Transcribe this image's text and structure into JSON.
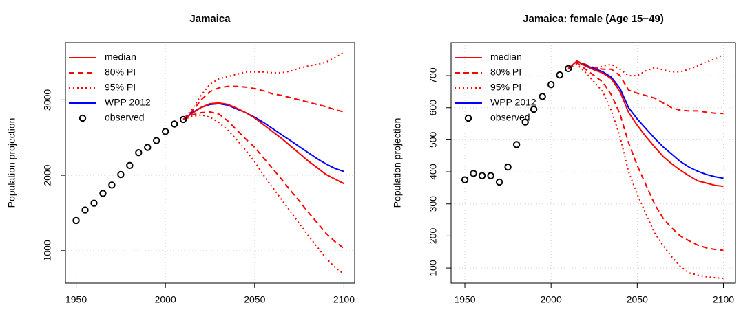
{
  "chart_data": [
    {
      "type": "line",
      "title": "Jamaica",
      "ylabel": "Population projection",
      "xlim": [
        1944,
        2106
      ],
      "ylim": [
        570,
        3760
      ],
      "xticks": [
        1950,
        2000,
        2050,
        2100
      ],
      "yticks": [
        1000,
        2000,
        3000
      ],
      "grid": true,
      "legend": "topleft",
      "series": [
        {
          "name": "median",
          "color": "#ff0000",
          "style": "solid",
          "x": [
            2010,
            2015,
            2020,
            2025,
            2030,
            2035,
            2040,
            2045,
            2050,
            2055,
            2060,
            2065,
            2070,
            2075,
            2080,
            2085,
            2090,
            2095,
            2100
          ],
          "values": [
            2740,
            2820,
            2900,
            2950,
            2960,
            2940,
            2890,
            2830,
            2760,
            2670,
            2580,
            2490,
            2390,
            2290,
            2190,
            2100,
            2010,
            1950,
            1890
          ]
        },
        {
          "name": "80% PI",
          "color": "#ff0000",
          "style": "dashed",
          "x": [
            2010,
            2015,
            2020,
            2025,
            2030,
            2035,
            2040,
            2045,
            2050,
            2055,
            2060,
            2065,
            2070,
            2075,
            2080,
            2085,
            2090,
            2095,
            2100
          ],
          "upper": [
            2740,
            2850,
            3000,
            3110,
            3160,
            3180,
            3180,
            3170,
            3150,
            3120,
            3080,
            3060,
            3030,
            3000,
            2970,
            2940,
            2910,
            2870,
            2840
          ],
          "lower": [
            2740,
            2800,
            2830,
            2840,
            2810,
            2720,
            2600,
            2480,
            2370,
            2230,
            2090,
            1950,
            1800,
            1660,
            1510,
            1370,
            1230,
            1120,
            1030
          ]
        },
        {
          "name": "95% PI",
          "color": "#ff0000",
          "style": "dotted",
          "x": [
            2010,
            2015,
            2020,
            2025,
            2030,
            2035,
            2040,
            2045,
            2050,
            2055,
            2060,
            2065,
            2070,
            2075,
            2080,
            2085,
            2090,
            2095,
            2100
          ],
          "upper": [
            2740,
            2880,
            3060,
            3210,
            3280,
            3310,
            3340,
            3370,
            3370,
            3370,
            3360,
            3360,
            3380,
            3420,
            3450,
            3470,
            3500,
            3560,
            3630
          ],
          "lower": [
            2740,
            2780,
            2800,
            2770,
            2700,
            2600,
            2470,
            2330,
            2180,
            2000,
            1840,
            1680,
            1520,
            1360,
            1200,
            1050,
            900,
            780,
            690
          ]
        },
        {
          "name": "WPP 2012",
          "color": "#0000ff",
          "style": "solid",
          "x": [
            2010,
            2015,
            2020,
            2025,
            2030,
            2035,
            2040,
            2045,
            2050,
            2055,
            2060,
            2065,
            2070,
            2075,
            2080,
            2085,
            2090,
            2095,
            2100
          ],
          "values": [
            2740,
            2830,
            2900,
            2940,
            2950,
            2930,
            2880,
            2830,
            2770,
            2700,
            2620,
            2540,
            2460,
            2380,
            2300,
            2220,
            2150,
            2090,
            2050
          ]
        },
        {
          "name": "observed",
          "color": "#000000",
          "style": "points",
          "x": [
            1950,
            1955,
            1960,
            1965,
            1970,
            1975,
            1980,
            1985,
            1990,
            1995,
            2000,
            2005,
            2010
          ],
          "values": [
            1400,
            1540,
            1630,
            1760,
            1870,
            2010,
            2130,
            2300,
            2370,
            2460,
            2580,
            2680,
            2740
          ]
        }
      ]
    },
    {
      "type": "line",
      "title": "Jamaica: female (Age 15−49)",
      "ylabel": "Population projection",
      "xlim": [
        1942,
        2107
      ],
      "ylim": [
        53,
        803
      ],
      "xticks": [
        1950,
        2000,
        2050,
        2100
      ],
      "yticks": [
        100,
        200,
        300,
        400,
        500,
        600,
        700
      ],
      "grid": true,
      "legend": "topleft",
      "series": [
        {
          "name": "median",
          "color": "#ff0000",
          "style": "solid",
          "x": [
            2010,
            2015,
            2020,
            2025,
            2030,
            2035,
            2040,
            2045,
            2050,
            2055,
            2060,
            2065,
            2070,
            2075,
            2080,
            2085,
            2090,
            2095,
            2100
          ],
          "values": [
            722,
            745,
            730,
            718,
            708,
            690,
            650,
            585,
            545,
            510,
            478,
            448,
            425,
            405,
            388,
            372,
            365,
            358,
            355
          ]
        },
        {
          "name": "80% PI",
          "color": "#ff0000",
          "style": "dashed",
          "x": [
            2010,
            2015,
            2020,
            2025,
            2030,
            2035,
            2040,
            2045,
            2050,
            2055,
            2060,
            2065,
            2070,
            2075,
            2080,
            2085,
            2090,
            2095,
            2100
          ],
          "upper": [
            722,
            745,
            735,
            725,
            720,
            720,
            700,
            655,
            645,
            638,
            630,
            615,
            600,
            592,
            590,
            590,
            586,
            583,
            582
          ],
          "lower": [
            722,
            740,
            720,
            700,
            680,
            640,
            580,
            490,
            420,
            360,
            300,
            255,
            225,
            200,
            185,
            172,
            163,
            158,
            155
          ]
        },
        {
          "name": "95% PI",
          "color": "#ff0000",
          "style": "dotted",
          "x": [
            2010,
            2015,
            2020,
            2025,
            2030,
            2035,
            2040,
            2045,
            2050,
            2055,
            2060,
            2065,
            2070,
            2075,
            2080,
            2085,
            2090,
            2095,
            2100
          ],
          "upper": [
            722,
            745,
            730,
            720,
            730,
            735,
            720,
            700,
            700,
            715,
            725,
            718,
            712,
            712,
            720,
            730,
            742,
            752,
            765
          ],
          "lower": [
            722,
            735,
            710,
            680,
            650,
            590,
            510,
            400,
            330,
            270,
            210,
            170,
            135,
            105,
            85,
            78,
            73,
            70,
            68
          ]
        },
        {
          "name": "WPP 2012",
          "color": "#0000ff",
          "style": "solid",
          "x": [
            2010,
            2015,
            2020,
            2025,
            2030,
            2035,
            2040,
            2045,
            2050,
            2055,
            2060,
            2065,
            2070,
            2075,
            2080,
            2085,
            2090,
            2095,
            2100
          ],
          "values": [
            722,
            745,
            732,
            722,
            712,
            695,
            660,
            600,
            565,
            535,
            505,
            478,
            455,
            432,
            415,
            402,
            392,
            385,
            380
          ]
        },
        {
          "name": "observed",
          "color": "#000000",
          "style": "points",
          "x": [
            1950,
            1955,
            1960,
            1965,
            1970,
            1975,
            1980,
            1985,
            1990,
            1995,
            2000,
            2005,
            2010
          ],
          "values": [
            375,
            395,
            388,
            388,
            368,
            415,
            485,
            555,
            595,
            635,
            672,
            702,
            722
          ]
        }
      ]
    }
  ]
}
